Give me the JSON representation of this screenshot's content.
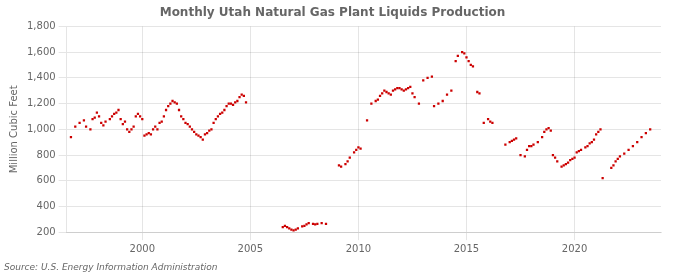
{
  "chart_data": {
    "type": "scatter",
    "title": "Monthly Utah Natural Gas Plant Liquids Production",
    "y_label": "Million Cubic Feet",
    "annotations": [
      "Source: U.S. Energy Information Administration"
    ],
    "color": "#cc0000",
    "marker": "square",
    "grid": true,
    "xlim": [
      1996.5,
      2024.0
    ],
    "xticks": [
      2000,
      2005,
      2010,
      2015,
      2020
    ],
    "ylim": [
      200,
      1800
    ],
    "yticks": [
      200,
      400,
      600,
      800,
      {
        "value": 1000,
        "label": "1,000"
      },
      {
        "value": 1200,
        "label": "1,200"
      },
      {
        "value": 1400,
        "label": "1,400"
      },
      {
        "value": 1600,
        "label": "1,600"
      },
      {
        "value": 1800,
        "label": "1,800"
      }
    ],
    "x": [
      1996.7,
      1996.9,
      1997.1,
      1997.3,
      1997.4,
      1997.6,
      1997.7,
      1997.8,
      1997.9,
      1998.0,
      1998.1,
      1998.2,
      1998.3,
      1998.5,
      1998.6,
      1998.7,
      1998.8,
      1998.9,
      1999.0,
      1999.1,
      1999.2,
      1999.3,
      1999.4,
      1999.5,
      1999.6,
      1999.7,
      1999.8,
      1999.9,
      2000.0,
      2000.1,
      2000.2,
      2000.3,
      2000.4,
      2000.5,
      2000.6,
      2000.7,
      2000.8,
      2000.9,
      2001.0,
      2001.1,
      2001.2,
      2001.3,
      2001.4,
      2001.5,
      2001.6,
      2001.7,
      2001.8,
      2001.9,
      2002.0,
      2002.1,
      2002.2,
      2002.3,
      2002.4,
      2002.5,
      2002.6,
      2002.7,
      2002.8,
      2002.9,
      2003.0,
      2003.1,
      2003.2,
      2003.3,
      2003.4,
      2003.5,
      2003.6,
      2003.7,
      2003.8,
      2003.9,
      2004.0,
      2004.1,
      2004.2,
      2004.3,
      2004.4,
      2004.5,
      2004.6,
      2004.7,
      2004.8,
      2006.5,
      2006.6,
      2006.7,
      2006.8,
      2006.9,
      2007.0,
      2007.1,
      2007.2,
      2007.4,
      2007.5,
      2007.6,
      2007.7,
      2007.9,
      2008.0,
      2008.1,
      2008.3,
      2008.5,
      2009.1,
      2009.2,
      2009.4,
      2009.5,
      2009.6,
      2009.8,
      2009.9,
      2010.0,
      2010.1,
      2010.4,
      2010.6,
      2010.8,
      2010.9,
      2011.0,
      2011.1,
      2011.2,
      2011.3,
      2011.4,
      2011.5,
      2011.6,
      2011.7,
      2011.8,
      2011.9,
      2012.0,
      2012.1,
      2012.2,
      2012.3,
      2012.4,
      2012.5,
      2012.6,
      2012.8,
      2013.0,
      2013.2,
      2013.4,
      2013.5,
      2013.7,
      2013.9,
      2014.1,
      2014.3,
      2014.5,
      2014.6,
      2014.8,
      2014.9,
      2015.0,
      2015.1,
      2015.2,
      2015.3,
      2015.5,
      2015.6,
      2015.8,
      2016.0,
      2016.1,
      2016.2,
      2016.8,
      2017.0,
      2017.1,
      2017.2,
      2017.3,
      2017.5,
      2017.7,
      2017.8,
      2017.9,
      2018.0,
      2018.1,
      2018.3,
      2018.5,
      2018.6,
      2018.7,
      2018.8,
      2018.9,
      2019.0,
      2019.1,
      2019.2,
      2019.4,
      2019.5,
      2019.6,
      2019.7,
      2019.8,
      2019.9,
      2020.0,
      2020.1,
      2020.2,
      2020.3,
      2020.5,
      2020.6,
      2020.7,
      2020.8,
      2020.9,
      2021.0,
      2021.1,
      2021.2,
      2021.3,
      2021.7,
      2021.8,
      2021.9,
      2022.0,
      2022.1,
      2022.3,
      2022.5,
      2022.7,
      2022.9,
      2023.1,
      2023.3,
      2023.5
    ],
    "values": [
      940,
      1020,
      1050,
      1070,
      1020,
      1000,
      1080,
      1090,
      1130,
      1100,
      1050,
      1030,
      1060,
      1080,
      1100,
      1120,
      1130,
      1150,
      1080,
      1040,
      1060,
      1000,
      980,
      1000,
      1020,
      1100,
      1120,
      1100,
      1080,
      950,
      960,
      970,
      960,
      1000,
      1020,
      1000,
      1050,
      1060,
      1100,
      1150,
      1180,
      1200,
      1220,
      1210,
      1200,
      1150,
      1100,
      1080,
      1050,
      1040,
      1020,
      1000,
      980,
      960,
      950,
      940,
      920,
      960,
      970,
      990,
      1000,
      1050,
      1080,
      1100,
      1120,
      1130,
      1150,
      1180,
      1200,
      1200,
      1190,
      1210,
      1220,
      1250,
      1270,
      1260,
      1210,
      240,
      250,
      240,
      230,
      220,
      215,
      220,
      230,
      245,
      250,
      260,
      270,
      265,
      260,
      265,
      270,
      265,
      720,
      710,
      730,
      750,
      780,
      820,
      840,
      860,
      850,
      1070,
      1200,
      1220,
      1230,
      1260,
      1280,
      1300,
      1290,
      1280,
      1270,
      1300,
      1310,
      1320,
      1320,
      1310,
      1300,
      1310,
      1320,
      1330,
      1280,
      1250,
      1200,
      1380,
      1400,
      1410,
      1180,
      1200,
      1220,
      1270,
      1300,
      1530,
      1570,
      1600,
      1590,
      1560,
      1530,
      1500,
      1490,
      1290,
      1280,
      1050,
      1080,
      1060,
      1050,
      880,
      900,
      910,
      920,
      930,
      800,
      790,
      840,
      870,
      870,
      880,
      900,
      940,
      980,
      1000,
      1010,
      990,
      800,
      780,
      750,
      710,
      720,
      730,
      740,
      760,
      770,
      780,
      820,
      830,
      840,
      860,
      870,
      890,
      900,
      920,
      960,
      980,
      1000,
      620,
      700,
      720,
      750,
      770,
      790,
      810,
      840,
      870,
      900,
      940,
      970,
      1000
    ]
  }
}
